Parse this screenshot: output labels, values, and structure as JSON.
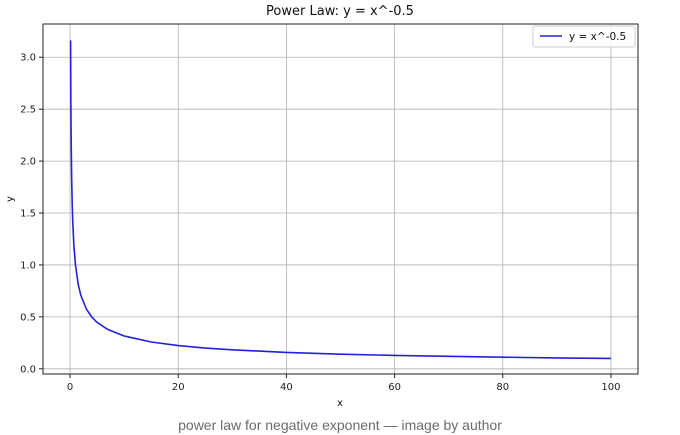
{
  "chart_data": {
    "type": "line",
    "title": "Power Law: y = x^-0.5",
    "xlabel": "x",
    "ylabel": "y",
    "xlim": [
      -5,
      105
    ],
    "ylim": [
      -0.05,
      3.32
    ],
    "xticks": [
      0,
      20,
      40,
      60,
      80,
      100
    ],
    "yticks": [
      0.0,
      0.5,
      1.0,
      1.5,
      2.0,
      2.5,
      3.0
    ],
    "xtick_labels": [
      "0",
      "20",
      "40",
      "60",
      "80",
      "100"
    ],
    "ytick_labels": [
      "0.0",
      "0.5",
      "1.0",
      "1.5",
      "2.0",
      "2.5",
      "3.0"
    ],
    "grid": true,
    "legend_position": "top-right",
    "series": [
      {
        "name": "y = x^-0.5",
        "color": "#2222dd",
        "x": [
          0.1,
          0.15,
          0.2,
          0.3,
          0.4,
          0.5,
          0.7,
          1,
          1.5,
          2,
          3,
          4,
          5,
          7,
          10,
          15,
          20,
          25,
          30,
          40,
          50,
          60,
          70,
          80,
          90,
          100
        ],
        "y": [
          3.162,
          2.582,
          2.236,
          1.826,
          1.581,
          1.414,
          1.195,
          1.0,
          0.816,
          0.707,
          0.577,
          0.5,
          0.447,
          0.378,
          0.316,
          0.258,
          0.224,
          0.2,
          0.183,
          0.158,
          0.141,
          0.129,
          0.12,
          0.112,
          0.105,
          0.1
        ]
      }
    ]
  },
  "caption": "power law for negative exponent — image by author"
}
